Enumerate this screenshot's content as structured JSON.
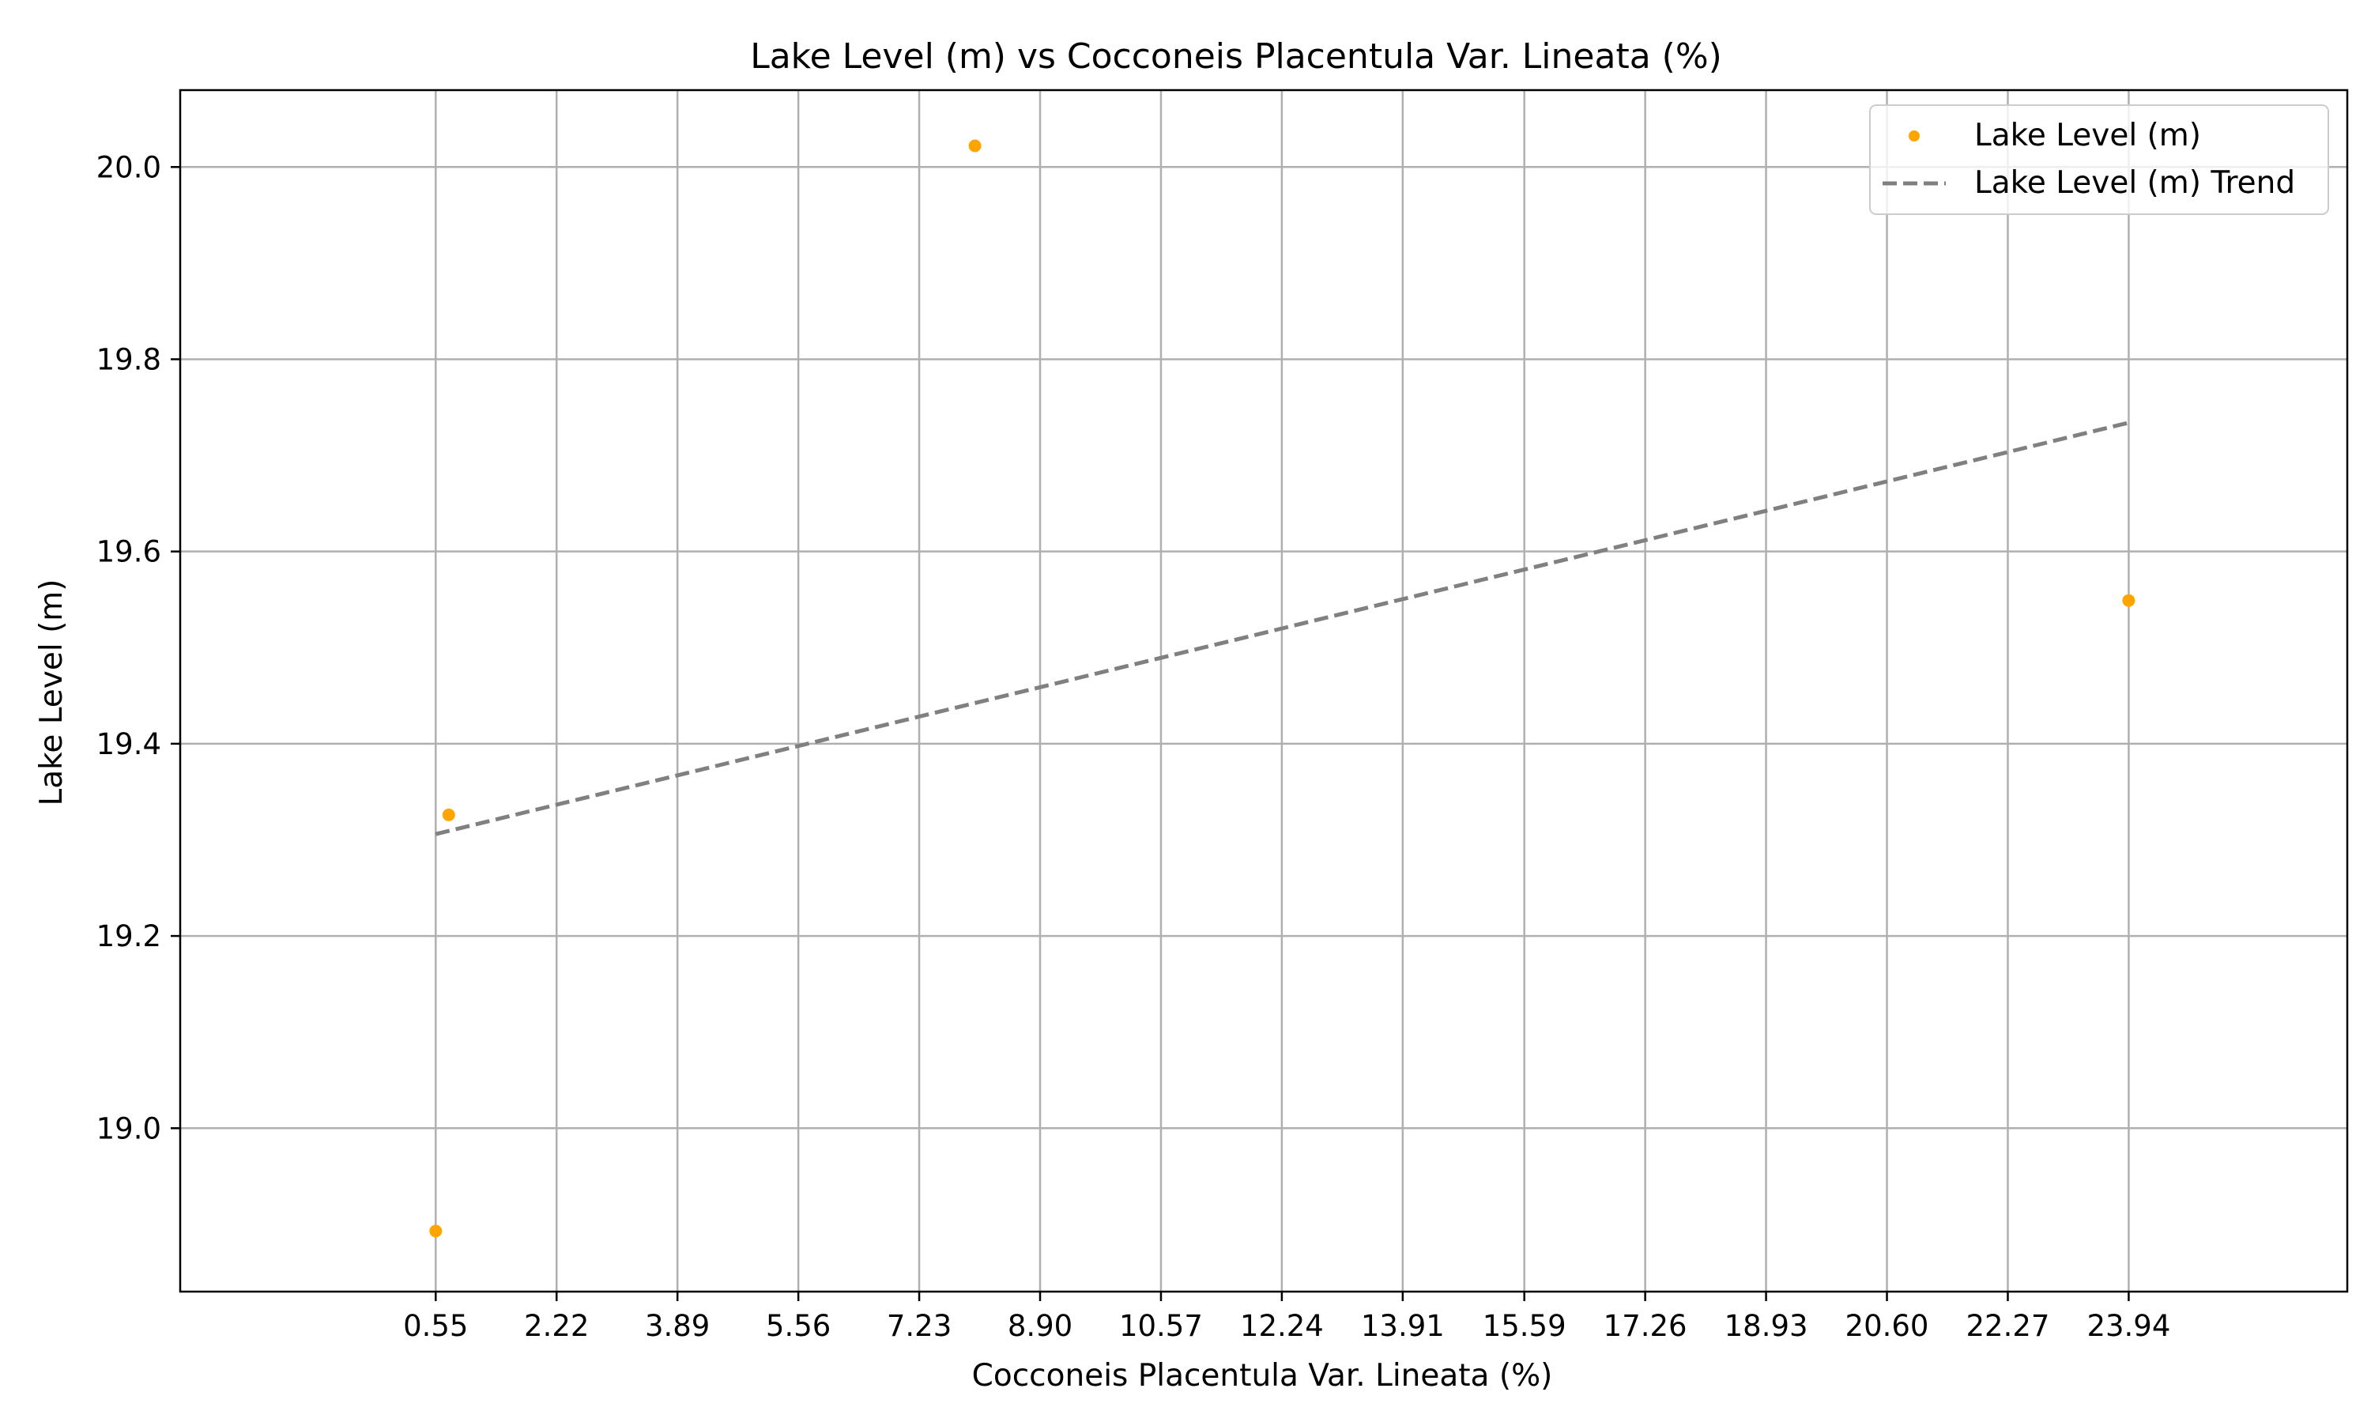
{
  "chart_data": {
    "type": "scatter",
    "title": "Lake Level (m) vs Cocconeis Placentula Var. Lineata (%)",
    "xlabel": "Cocconeis Placentula Var. Lineata (%)",
    "ylabel": "Lake Level (m)",
    "xlim": [
      -2.98,
      26.96
    ],
    "ylim": [
      18.83,
      20.08
    ],
    "xticks": [
      "0.55",
      "2.22",
      "3.89",
      "5.56",
      "7.23",
      "8.90",
      "10.57",
      "12.24",
      "13.91",
      "15.59",
      "17.26",
      "18.93",
      "20.60",
      "22.27",
      "23.94"
    ],
    "yticks": [
      "19.0",
      "19.2",
      "19.4",
      "19.6",
      "19.8",
      "20.0"
    ],
    "grid": true,
    "legend": {
      "position": "top-right",
      "entries": [
        "Lake Level (m)",
        "Lake Level (m) Trend"
      ]
    },
    "series": [
      {
        "name": "Lake Level (m)",
        "kind": "scatter",
        "color": "#FFA500",
        "points": [
          {
            "x": 0.55,
            "y": 18.893
          },
          {
            "x": 0.73,
            "y": 19.326
          },
          {
            "x": 8.0,
            "y": 20.022
          },
          {
            "x": 23.94,
            "y": 19.549
          }
        ]
      },
      {
        "name": "Lake Level (m) Trend",
        "kind": "line",
        "style": "dashed",
        "color": "#808080",
        "points": [
          {
            "x": 0.55,
            "y": 19.306
          },
          {
            "x": 23.94,
            "y": 19.734
          }
        ]
      }
    ]
  }
}
